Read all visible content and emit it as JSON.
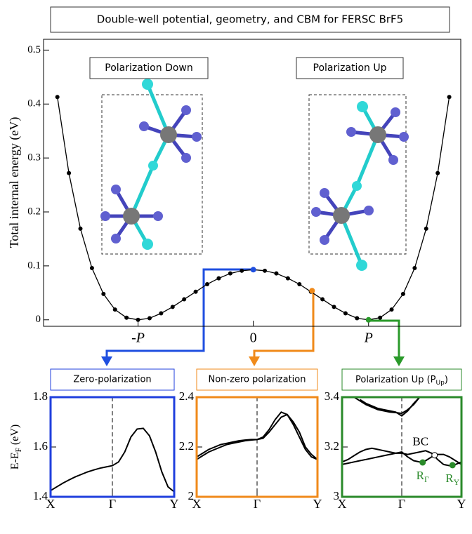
{
  "chart_data": [
    {
      "type": "line",
      "title": "Double-well potential, geometry, and CBM for FERSC BrF5",
      "ylabel": "Total internal energy (eV)",
      "annotations": [
        "Polarization Down",
        "Polarization Up"
      ],
      "marker": "circle",
      "x": [
        -1.7,
        -1.6,
        -1.5,
        -1.4,
        -1.3,
        -1.2,
        -1.1,
        -1.0,
        -0.9,
        -0.8,
        -0.7,
        -0.6,
        -0.5,
        -0.4,
        -0.3,
        -0.2,
        -0.1,
        0,
        0.1,
        0.2,
        0.3,
        0.4,
        0.5,
        0.6,
        0.7,
        0.8,
        0.9,
        1.0,
        1.1,
        1.2,
        1.3,
        1.4,
        1.5,
        1.6,
        1.7
      ],
      "series": [
        {
          "color": "#000000",
          "values": [
            0.413,
            0.272,
            0.169,
            0.096,
            0.048,
            0.019,
            0.004,
            0,
            0.003,
            0.012,
            0.024,
            0.038,
            0.052,
            0.066,
            0.077,
            0.086,
            0.091,
            0.093,
            0.091,
            0.086,
            0.077,
            0.066,
            0.052,
            0.038,
            0.024,
            0.012,
            0.003,
            0,
            0.004,
            0.019,
            0.048,
            0.096,
            0.169,
            0.272,
            0.413
          ]
        }
      ],
      "highlights": [
        {
          "x": 0,
          "y": 0.093,
          "color": "#1f4fe0"
        },
        {
          "x": 0.51,
          "y": 0.054,
          "color": "#f08a1a"
        },
        {
          "x": 1.0,
          "y": 0,
          "color": "#2a9a2a"
        }
      ],
      "xlim": [
        -1.82,
        1.8
      ],
      "xticks": [
        {
          "value": -1,
          "label": "-P"
        },
        0,
        {
          "value": 1,
          "label": "P"
        }
      ],
      "ylim": [
        -0.012,
        0.52
      ],
      "yticks": [
        0,
        0.1,
        0.2,
        0.3,
        0.4,
        0.5
      ]
    },
    {
      "type": "line",
      "title": "Zero-polarization",
      "color": "#1f3fdd",
      "ylabel": [
        "E-E",
        "F",
        " (eV)"
      ],
      "x": [
        0,
        0.1,
        0.2,
        0.3,
        0.4,
        0.5,
        0.6,
        0.7,
        0.8,
        0.9,
        1.0,
        1.1,
        1.2,
        1.3,
        1.4,
        1.5,
        1.6,
        1.7,
        1.8,
        1.9,
        2.0
      ],
      "series": [
        {
          "color": "#000000",
          "values": [
            1.425,
            1.44,
            1.455,
            1.468,
            1.48,
            1.49,
            1.5,
            1.508,
            1.515,
            1.52,
            1.525,
            1.54,
            1.58,
            1.64,
            1.672,
            1.675,
            1.645,
            1.58,
            1.5,
            1.44,
            1.42
          ]
        }
      ],
      "xlim": [
        0,
        2
      ],
      "xticks": [
        {
          "value": 0,
          "label": "X"
        },
        {
          "value": 1,
          "label": "Γ"
        },
        {
          "value": 2,
          "label": "Y"
        }
      ],
      "ylim": [
        1.4,
        1.8
      ],
      "yticks": [
        1.4,
        1.6,
        1.8
      ]
    },
    {
      "type": "line",
      "title": "Non-zero polarization",
      "color": "#f08a1a",
      "x": [
        0,
        0.1,
        0.2,
        0.3,
        0.4,
        0.5,
        0.6,
        0.7,
        0.8,
        0.9,
        1.0,
        1.1,
        1.2,
        1.3,
        1.4,
        1.5,
        1.6,
        1.7,
        1.8,
        1.9,
        2.0
      ],
      "series": [
        {
          "color": "#000000",
          "values": [
            2.15,
            2.165,
            2.18,
            2.19,
            2.2,
            2.21,
            2.215,
            2.22,
            2.225,
            2.228,
            2.23,
            2.24,
            2.27,
            2.31,
            2.34,
            2.33,
            2.29,
            2.24,
            2.19,
            2.16,
            2.15
          ]
        },
        {
          "color": "#000000",
          "values": [
            2.16,
            2.175,
            2.19,
            2.2,
            2.21,
            2.215,
            2.22,
            2.225,
            2.228,
            2.23,
            2.23,
            2.235,
            2.26,
            2.29,
            2.32,
            2.33,
            2.3,
            2.26,
            2.2,
            2.17,
            2.15
          ]
        }
      ],
      "xlim": [
        0,
        2
      ],
      "xticks": [
        {
          "value": 0,
          "label": "X"
        },
        {
          "value": 1,
          "label": "Γ"
        },
        {
          "value": 2,
          "label": "Y"
        }
      ],
      "ylim": [
        2,
        2.4
      ],
      "yticks": [
        2,
        2.2,
        2.4
      ]
    },
    {
      "type": "line",
      "title": [
        "Polarization Up (P",
        "Up",
        ")"
      ],
      "color": "#2a8a2a",
      "x": [
        0,
        0.1,
        0.2,
        0.3,
        0.4,
        0.5,
        0.6,
        0.7,
        0.8,
        0.9,
        1.0,
        1.1,
        1.2,
        1.3,
        1.4,
        1.5,
        1.6,
        1.7,
        1.8,
        1.9,
        2.0
      ],
      "series": [
        {
          "color": "#000000",
          "values": [
            null,
            null,
            3.4,
            3.385,
            3.37,
            3.36,
            3.35,
            3.345,
            3.34,
            3.338,
            3.335,
            3.35,
            3.37,
            3.4,
            null,
            null,
            null,
            null,
            null,
            null,
            null
          ]
        },
        {
          "color": "#000000",
          "values": [
            null,
            null,
            null,
            3.39,
            3.375,
            3.365,
            3.355,
            3.35,
            3.345,
            3.34,
            3.325,
            3.345,
            3.375,
            3.4,
            null,
            null,
            null,
            null,
            null,
            null,
            null
          ]
        },
        {
          "color": "#000000",
          "values": [
            3.14,
            3.15,
            3.165,
            3.18,
            3.19,
            3.195,
            3.19,
            3.185,
            3.18,
            3.175,
            3.18,
            3.16,
            3.145,
            3.14,
            3.145,
            3.16,
            3.17,
            3.17,
            3.16,
            3.145,
            3.13
          ]
        },
        {
          "color": "#000000",
          "values": [
            3.13,
            3.135,
            3.14,
            3.145,
            3.15,
            3.155,
            3.16,
            3.165,
            3.17,
            3.175,
            3.175,
            3.17,
            3.175,
            3.18,
            3.185,
            3.175,
            3.15,
            3.13,
            3.125,
            3.13,
            3.14
          ]
        }
      ],
      "points": [
        {
          "x": 1.55,
          "y": 3.167,
          "label": "BC",
          "open": true
        },
        {
          "x": 1.35,
          "y": 3.138,
          "label": [
            "R",
            "Γ"
          ]
        },
        {
          "x": 1.85,
          "y": 3.127,
          "label": [
            "R",
            "Y"
          ]
        }
      ],
      "xlim": [
        0,
        2
      ],
      "xticks": [
        {
          "value": 0,
          "label": "X"
        },
        {
          "value": 1,
          "label": "Γ"
        },
        {
          "value": 2,
          "label": "Y"
        }
      ],
      "ylim": [
        3,
        3.4
      ],
      "yticks": [
        3,
        3.2,
        3.4
      ]
    }
  ]
}
